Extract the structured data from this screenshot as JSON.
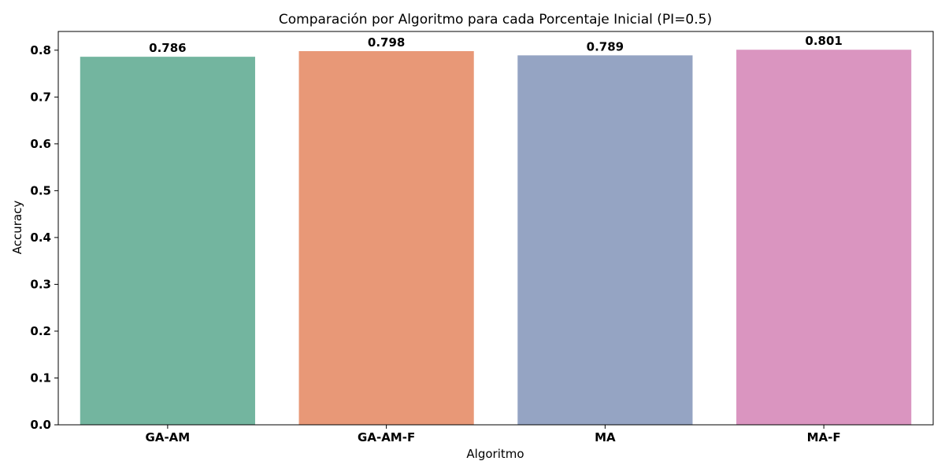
{
  "chart_data": {
    "type": "bar",
    "title": "Comparación por Algoritmo para cada Porcentaje Inicial (PI=0.5)",
    "xlabel": "Algoritmo",
    "ylabel": "Accuracy",
    "categories": [
      "GA-AM",
      "GA-AM-F",
      "MA",
      "MA-F"
    ],
    "values": [
      0.786,
      0.798,
      0.789,
      0.801
    ],
    "value_labels": [
      "0.786",
      "0.798",
      "0.789",
      "0.801"
    ],
    "colors": [
      "#73b59f",
      "#e89877",
      "#95a4c3",
      "#da95c0"
    ],
    "ylim": [
      0,
      0.84
    ],
    "yticks": [
      0.0,
      0.1,
      0.2,
      0.3,
      0.4,
      0.5,
      0.6,
      0.7,
      0.8
    ],
    "ytick_labels": [
      "0.0",
      "0.1",
      "0.2",
      "0.3",
      "0.4",
      "0.5",
      "0.6",
      "0.7",
      "0.8"
    ],
    "grid": false,
    "legend": "none"
  }
}
